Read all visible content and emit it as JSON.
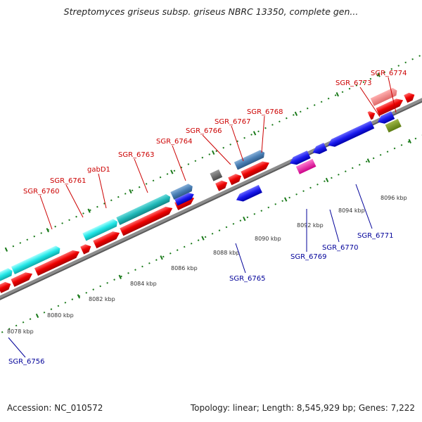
{
  "title": "Streptomyces griseus subsp. griseus NBRC 13350, complete gen...",
  "footer": {
    "accession": "Accession: NC_010572",
    "summary": "Topology: linear; Length: 8,545,929 bp; Genes: 7,222"
  },
  "colors": {
    "forward_label": "#cc0000",
    "reverse_label": "#000099",
    "tick": "#1a7a1a",
    "backbone": "#888888"
  },
  "ticks": [
    {
      "kbp": 8078,
      "label": "8078 kbp"
    },
    {
      "kbp": 8080,
      "label": "8080 kbp"
    },
    {
      "kbp": 8082,
      "label": "8082 kbp"
    },
    {
      "kbp": 8084,
      "label": "8084 kbp"
    },
    {
      "kbp": 8086,
      "label": "8086 kbp"
    },
    {
      "kbp": 8088,
      "label": "8088 kbp"
    },
    {
      "kbp": 8090,
      "label": "8090 kbp"
    },
    {
      "kbp": 8092,
      "label": "8092 kbp"
    },
    {
      "kbp": 8094,
      "label": "8094 kbp"
    },
    {
      "kbp": 8096,
      "label": "8096 kbp"
    }
  ],
  "forward_labels": [
    "SGR_6760",
    "SGR_6761",
    "gabD1",
    "SGR_6763",
    "SGR_6764",
    "SGR_6766",
    "SGR_6767",
    "SGR_6768",
    "SGR_6773",
    "SGR_6774"
  ],
  "reverse_labels": [
    "SGR_6756",
    "SGR_6765",
    "SGR_6769",
    "SGR_6770",
    "SGR_6771"
  ]
}
